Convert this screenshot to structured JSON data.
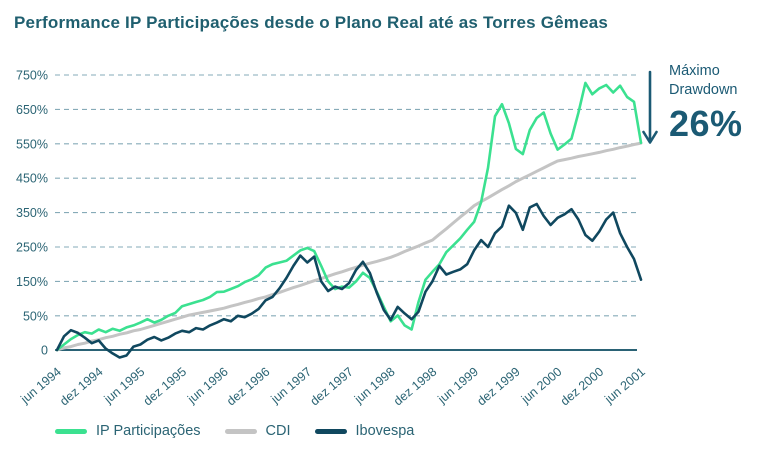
{
  "title": "Performance IP Participações desde o Plano Real até as Torres Gêmeas",
  "annotation": {
    "line1": "Máximo",
    "line2": "Drawdown",
    "value": "26%"
  },
  "colors": {
    "title_teal": "#1f5f6f",
    "label_teal": "#2b6474",
    "axis_teal": "#2a6275",
    "gridline": "#86abb8",
    "ip": "#3be190",
    "cdi": "#c4c4c4",
    "ibovespa": "#10485f",
    "annotation_teal": "#1b5a74"
  },
  "chart_data": {
    "type": "line",
    "title": "Performance IP Participações desde o Plano Real até as Torres Gêmeas",
    "xlabel": "",
    "ylabel": "",
    "x_unit": "month",
    "categories": [
      "jun 1994",
      "dez 1994",
      "jun 1995",
      "dez 1995",
      "jun 1996",
      "dez 1996",
      "jun 1997",
      "dez 1997",
      "jun 1998",
      "dez 1998",
      "jun 1999",
      "dez 1999",
      "jun 2000",
      "dez 2000",
      "jun 2001"
    ],
    "category_month_step": 6,
    "ytick_labels": [
      "750%",
      "650%",
      "550%",
      "450%",
      "350%",
      "250%",
      "150%",
      "50%",
      "0"
    ],
    "ytick_values": [
      750,
      650,
      550,
      450,
      350,
      250,
      150,
      50,
      0
    ],
    "ylim": [
      -15,
      750
    ],
    "grid": "dashed-horizontal",
    "legend_position": "bottom",
    "annotation_value_pct": 26,
    "series": [
      {
        "name": "IP Participações",
        "color": "#3be190",
        "values": [
          0,
          8,
          16,
          22,
          26,
          24,
          30,
          26,
          31,
          28,
          33,
          36,
          40,
          45,
          40,
          44,
          50,
          58,
          78,
          84,
          90,
          96,
          105,
          119,
          120,
          128,
          136,
          148,
          156,
          168,
          190,
          200,
          205,
          210,
          225,
          240,
          247,
          238,
          195,
          150,
          128,
          135,
          132,
          150,
          175,
          160,
          120,
          76,
          42,
          51,
          36,
          30,
          90,
          155,
          178,
          200,
          235,
          255,
          275,
          300,
          323,
          380,
          480,
          630,
          665,
          610,
          535,
          520,
          590,
          625,
          641,
          580,
          533,
          548,
          565,
          640,
          727,
          694,
          711,
          721,
          699,
          719,
          686,
          672,
          553
        ]
      },
      {
        "name": "CDI",
        "color": "#c4c4c4",
        "values": [
          0,
          3,
          5,
          8,
          10,
          13,
          15,
          18,
          20,
          23,
          25,
          28,
          30,
          33,
          36,
          39,
          42,
          45,
          48,
          52,
          56,
          60,
          64,
          68,
          72,
          78,
          83,
          89,
          94,
          100,
          105,
          112,
          118,
          125,
          132,
          138,
          145,
          152,
          158,
          165,
          172,
          178,
          185,
          191,
          197,
          203,
          208,
          214,
          220,
          228,
          237,
          245,
          253,
          262,
          270,
          287,
          303,
          320,
          337,
          353,
          370,
          382,
          393,
          405,
          417,
          428,
          440,
          450,
          460,
          470,
          480,
          490,
          500,
          504,
          508,
          513,
          517,
          521,
          525,
          530,
          534,
          539,
          543,
          548,
          552
        ]
      },
      {
        "name": "Ibovespa",
        "color": "#10485f",
        "values": [
          0,
          20,
          29,
          25,
          18,
          10,
          14,
          2,
          -5,
          -11,
          -8,
          5,
          8,
          15,
          19,
          14,
          18,
          24,
          28,
          26,
          32,
          30,
          36,
          40,
          45,
          42,
          50,
          48,
          56,
          70,
          95,
          105,
          130,
          160,
          195,
          225,
          205,
          222,
          150,
          122,
          135,
          128,
          145,
          183,
          207,
          174,
          117,
          67,
          44,
          76,
          57,
          45,
          62,
          120,
          150,
          195,
          170,
          178,
          185,
          200,
          240,
          270,
          250,
          290,
          310,
          370,
          349,
          300,
          365,
          375,
          340,
          314,
          335,
          345,
          360,
          330,
          285,
          268,
          295,
          330,
          350,
          290,
          250,
          215,
          155
        ]
      }
    ]
  }
}
